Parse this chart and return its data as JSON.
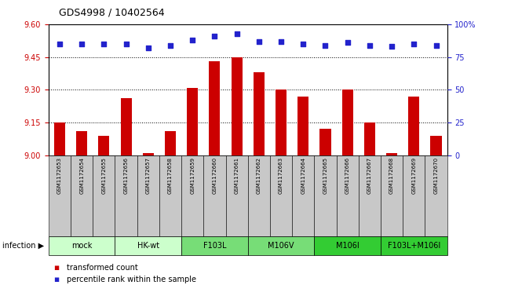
{
  "title": "GDS4998 / 10402564",
  "samples": [
    "GSM1172653",
    "GSM1172654",
    "GSM1172655",
    "GSM1172656",
    "GSM1172657",
    "GSM1172658",
    "GSM1172659",
    "GSM1172660",
    "GSM1172661",
    "GSM1172662",
    "GSM1172663",
    "GSM1172664",
    "GSM1172665",
    "GSM1172666",
    "GSM1172667",
    "GSM1172668",
    "GSM1172669",
    "GSM1172670"
  ],
  "bar_values": [
    9.15,
    9.11,
    9.09,
    9.26,
    9.01,
    9.11,
    9.31,
    9.43,
    9.45,
    9.38,
    9.3,
    9.27,
    9.12,
    9.3,
    9.15,
    9.01,
    9.27,
    9.09
  ],
  "percentile_values": [
    85,
    85,
    85,
    85,
    82,
    84,
    88,
    91,
    93,
    87,
    87,
    85,
    84,
    86,
    84,
    83,
    85,
    84
  ],
  "ymin": 9.0,
  "ymax": 9.6,
  "y2min": 0,
  "y2max": 100,
  "yticks": [
    9.0,
    9.15,
    9.3,
    9.45,
    9.6
  ],
  "y2ticks": [
    0,
    25,
    50,
    75,
    100
  ],
  "bar_color": "#cc0000",
  "dot_color": "#2222cc",
  "bar_width": 0.5,
  "group_spans": [
    {
      "label": "mock",
      "start": 0,
      "end": 2,
      "color": "#ccffcc"
    },
    {
      "label": "HK-wt",
      "start": 3,
      "end": 5,
      "color": "#ccffcc"
    },
    {
      "label": "F103L",
      "start": 6,
      "end": 8,
      "color": "#77dd77"
    },
    {
      "label": "M106V",
      "start": 9,
      "end": 11,
      "color": "#77dd77"
    },
    {
      "label": "M106I",
      "start": 12,
      "end": 14,
      "color": "#33cc33"
    },
    {
      "label": "F103L+M106I",
      "start": 15,
      "end": 17,
      "color": "#33cc33"
    }
  ],
  "infection_label": "infection",
  "legend_bar_label": "transformed count",
  "legend_dot_label": "percentile rank within the sample",
  "background_color": "#ffffff",
  "sample_box_color": "#c8c8c8",
  "title_fontsize": 9,
  "tick_fontsize": 7,
  "sample_fontsize": 5,
  "group_fontsize": 7,
  "legend_fontsize": 7
}
